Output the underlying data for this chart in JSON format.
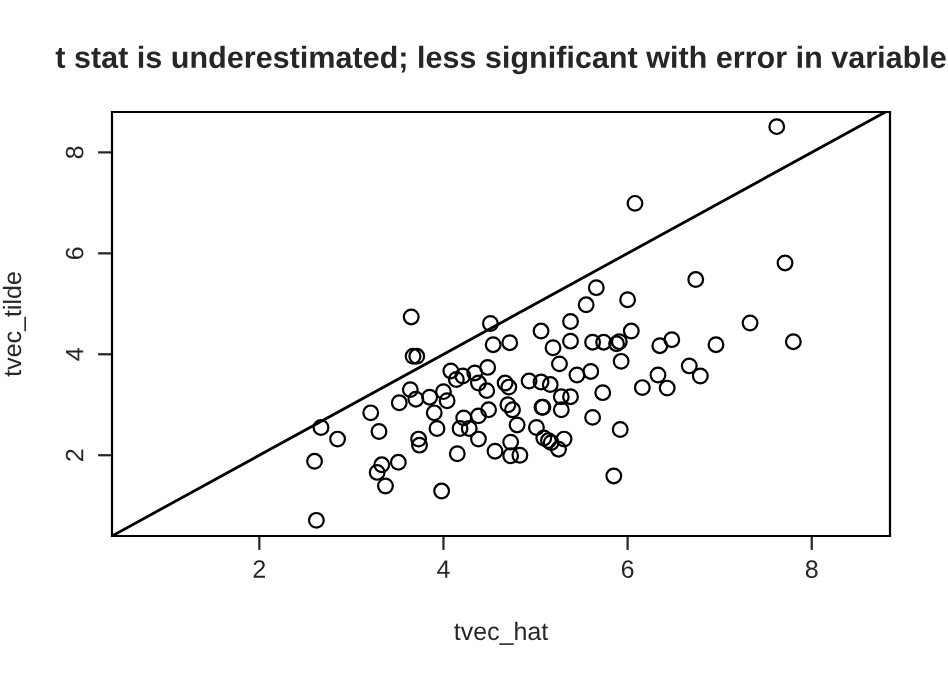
{
  "chart_data": {
    "type": "scatter",
    "title": "t stat is underestimated; less significant with error in variable",
    "xlabel": "tvec_hat",
    "ylabel": "tvec_tilde",
    "xlim": [
      0.4,
      8.85
    ],
    "ylim": [
      0.4,
      8.8
    ],
    "xticks": [
      2,
      4,
      6,
      8
    ],
    "yticks": [
      2,
      4,
      6,
      8
    ],
    "grid": false,
    "legend": false,
    "marker": "circle",
    "series": [
      {
        "color": "#000000",
        "x": [
          3.65,
          3.67,
          3.71,
          4.51,
          4.54,
          2.67,
          2.85,
          2.6,
          2.62,
          3.21,
          3.3,
          3.33,
          3.28,
          3.37,
          3.51,
          3.52,
          3.64,
          3.7,
          3.73,
          3.74,
          3.85,
          3.9,
          3.93,
          3.98,
          4.0,
          4.04,
          4.08,
          4.14,
          4.21,
          4.15,
          4.22,
          4.18,
          4.28,
          4.34,
          4.38,
          4.48,
          4.47,
          4.38,
          4.49,
          4.38,
          4.56,
          7.62,
          6.08,
          7.71,
          6.74,
          5.66,
          5.55,
          6.0,
          5.38,
          6.04,
          7.33,
          7.8,
          4.72,
          5.06,
          5.19,
          5.38,
          5.62,
          5.74,
          5.88,
          5.91,
          5.93,
          6.35,
          6.48,
          6.96,
          5.26,
          5.6,
          5.45,
          4.93,
          5.06,
          5.16,
          4.67,
          4.71,
          5.28,
          5.38,
          5.73,
          6.16,
          6.33,
          6.43,
          6.67,
          6.79,
          4.7,
          4.75,
          5.07,
          5.08,
          5.28,
          5.62,
          4.8,
          5.01,
          5.92,
          4.73,
          5.09,
          5.14,
          5.17,
          5.31,
          5.25,
          4.73,
          4.83,
          5.85
        ],
        "values": [
          4.74,
          3.96,
          3.96,
          4.61,
          4.19,
          2.55,
          2.32,
          1.88,
          0.71,
          2.84,
          2.47,
          1.81,
          1.66,
          1.39,
          1.86,
          3.04,
          3.3,
          3.11,
          2.32,
          2.2,
          3.15,
          2.84,
          2.53,
          1.29,
          3.26,
          3.08,
          3.67,
          3.5,
          3.57,
          2.03,
          2.74,
          2.53,
          2.53,
          3.63,
          3.43,
          3.74,
          3.28,
          2.78,
          2.9,
          2.32,
          2.08,
          8.51,
          6.99,
          5.81,
          5.48,
          5.32,
          4.98,
          5.08,
          4.65,
          4.46,
          4.62,
          4.25,
          4.23,
          4.46,
          4.13,
          4.26,
          4.24,
          4.24,
          4.21,
          4.25,
          3.86,
          4.17,
          4.29,
          4.19,
          3.81,
          3.66,
          3.59,
          3.47,
          3.45,
          3.4,
          3.43,
          3.35,
          3.16,
          3.16,
          3.24,
          3.34,
          3.59,
          3.33,
          3.77,
          3.57,
          3.0,
          2.9,
          2.95,
          2.95,
          2.9,
          2.75,
          2.6,
          2.55,
          2.51,
          2.26,
          2.34,
          2.29,
          2.25,
          2.32,
          2.12,
          1.99,
          2.0,
          1.59
        ]
      },
      {
        "type": "line",
        "color": "#000000",
        "marker": "none",
        "line_style": "solid",
        "x": [
          0.4,
          8.8
        ],
        "values": [
          0.4,
          8.8
        ]
      }
    ]
  }
}
